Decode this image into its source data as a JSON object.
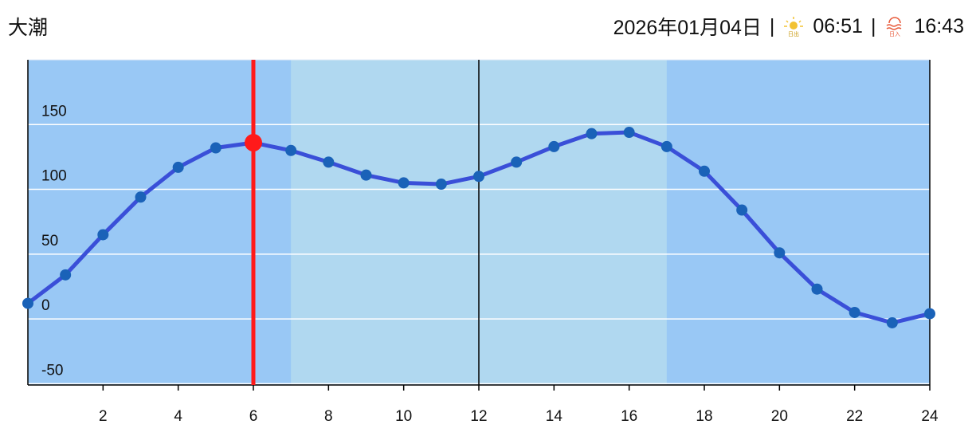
{
  "header": {
    "tide_type": "大潮",
    "date": "2026年01月04日",
    "separator": "|",
    "sunrise_icon_text": "日出",
    "sunrise": "06:51",
    "sunset_icon_text": "日入",
    "sunset": "16:43"
  },
  "chart_data": {
    "type": "line",
    "x": [
      0,
      1,
      2,
      3,
      4,
      5,
      6,
      7,
      8,
      9,
      10,
      11,
      12,
      13,
      14,
      15,
      16,
      17,
      18,
      19,
      20,
      21,
      22,
      23,
      24
    ],
    "series": [
      {
        "color": "#3a4fd8",
        "point_color": "#1a62b8",
        "values": [
          12,
          34,
          65,
          94,
          117,
          132,
          136,
          130,
          121,
          111,
          105,
          104,
          110,
          121,
          133,
          143,
          144,
          133,
          114,
          84,
          51,
          23,
          5,
          -3,
          4
        ]
      }
    ],
    "xlim": [
      0,
      24
    ],
    "xticks": [
      2,
      4,
      6,
      8,
      10,
      12,
      14,
      16,
      18,
      20,
      22,
      24
    ],
    "ylim": [
      -51,
      200
    ],
    "yticks": [
      -50,
      0,
      50,
      100,
      150
    ],
    "grid": true,
    "current_x": 6,
    "current_color": "#ff1a1a",
    "day_band": [
      7,
      17
    ],
    "night_color": "#99c8f5",
    "day_color": "#b0d8f0",
    "noon_line": 12
  }
}
